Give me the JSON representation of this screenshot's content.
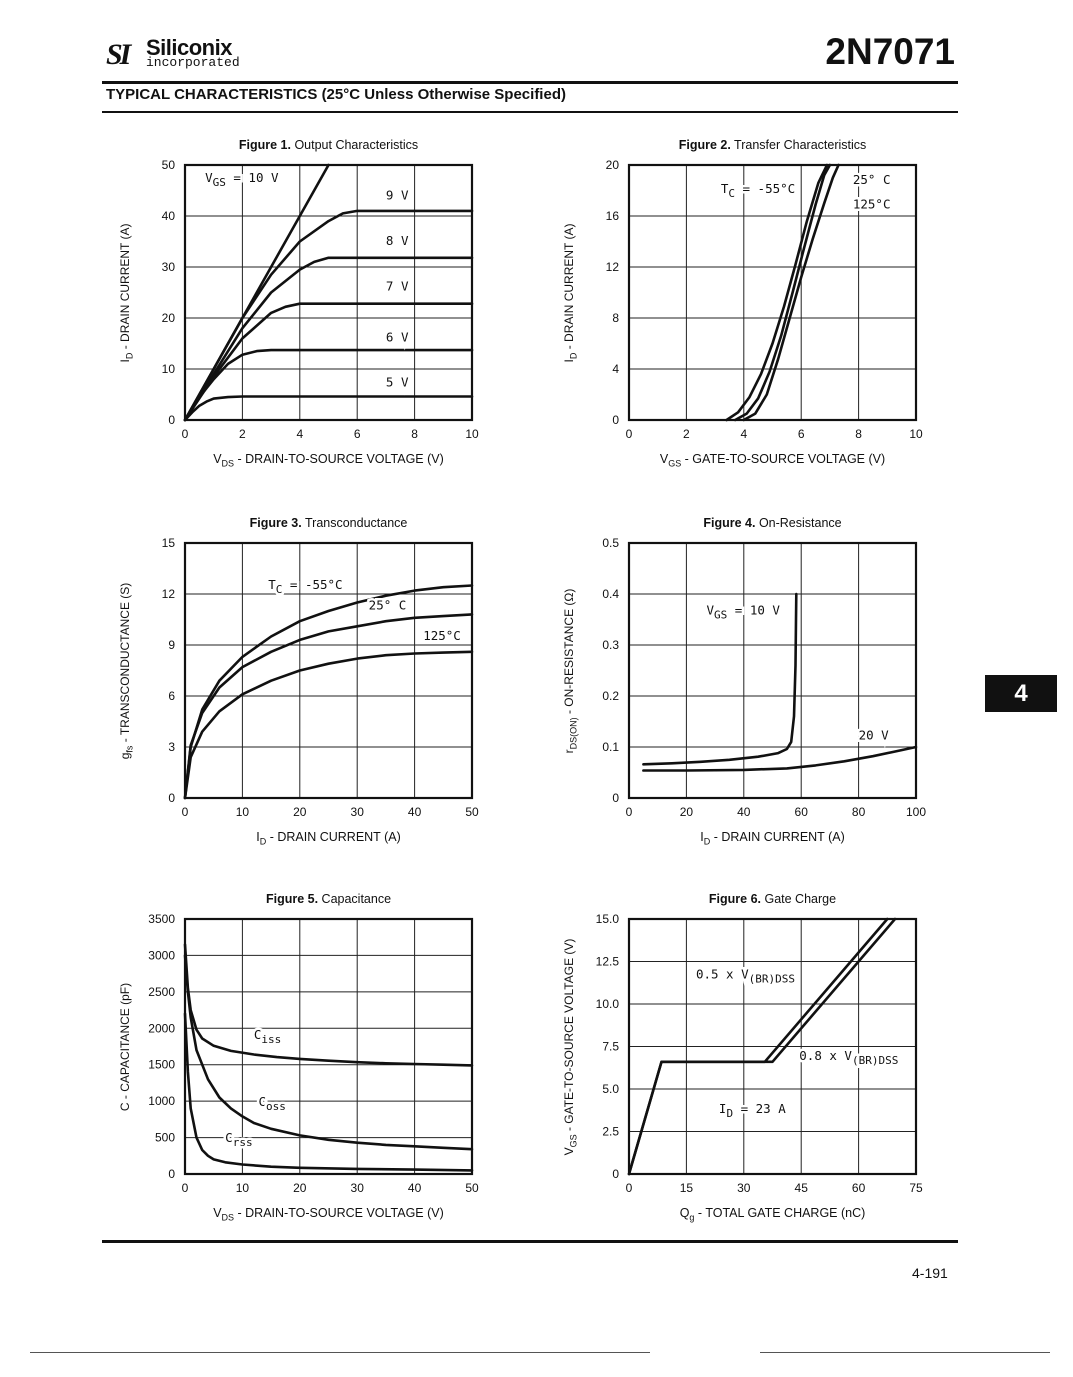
{
  "header": {
    "logo_mark": "SI",
    "logo_name": "Siliconix",
    "logo_subtitle": "incorporated",
    "part_number": "2N7071",
    "section_title": "TYPICAL CHARACTERISTICS (25°C Unless Otherwise Specified)"
  },
  "section_tab": "4",
  "footer": {
    "page_number": "4-191"
  },
  "chart_data": [
    {
      "id": "fig1",
      "type": "line",
      "figure_label": "Figure 1.",
      "figure_name": "Output Characteristics",
      "xlabel_sym": "V",
      "xlabel_sub": "DS",
      "xlabel_text": "-  DRAIN-TO-SOURCE VOLTAGE (V)",
      "ylabel_sym": "I",
      "ylabel_sub": "D",
      "ylabel_text": "-  DRAIN CURRENT (A)",
      "xlim": [
        0,
        10
      ],
      "ylim": [
        0,
        50
      ],
      "xticks": [
        "0",
        "2",
        "4",
        "6",
        "8",
        "10"
      ],
      "yticks": [
        "0",
        "10",
        "20",
        "30",
        "40",
        "50"
      ],
      "series": [
        {
          "name": "VGS = 10 V",
          "x": [
            0,
            1,
            2,
            3,
            4,
            5
          ],
          "y": [
            0,
            10,
            20,
            30,
            40,
            50
          ]
        },
        {
          "name": "9 V",
          "x": [
            0,
            1,
            2,
            3,
            4,
            5,
            5.5,
            6,
            7,
            10
          ],
          "y": [
            0,
            10,
            20,
            28.5,
            35,
            39,
            40.5,
            41,
            41,
            41
          ]
        },
        {
          "name": "8 V",
          "x": [
            0,
            1,
            2,
            3,
            4,
            4.5,
            5,
            10
          ],
          "y": [
            0,
            9,
            18,
            25,
            29.5,
            31,
            31.8,
            31.8
          ]
        },
        {
          "name": "7 V",
          "x": [
            0,
            1,
            2,
            3,
            3.5,
            4,
            10
          ],
          "y": [
            0,
            8.5,
            16,
            21,
            22.2,
            22.8,
            22.8
          ]
        },
        {
          "name": "6 V",
          "x": [
            0,
            0.5,
            1,
            1.5,
            2,
            2.5,
            3,
            10
          ],
          "y": [
            0,
            4.5,
            8,
            11,
            12.8,
            13.5,
            13.7,
            13.7
          ]
        },
        {
          "name": "5 V",
          "x": [
            0,
            0.25,
            0.5,
            0.75,
            1,
            1.5,
            2,
            10
          ],
          "y": [
            0,
            1.5,
            2.8,
            3.6,
            4.2,
            4.5,
            4.6,
            4.6
          ]
        }
      ],
      "annotations": [
        {
          "text": "V",
          "sub": "GS",
          "after": " = 10 V",
          "x": 0.7,
          "y": 46.7
        },
        {
          "text": "9 V",
          "x": 7.0,
          "y": 43.2
        },
        {
          "text": "8 V",
          "x": 7.0,
          "y": 34.3
        },
        {
          "text": "7 V",
          "x": 7.0,
          "y": 25.4
        },
        {
          "text": "6 V",
          "x": 7.0,
          "y": 15.4
        },
        {
          "text": "5 V",
          "x": 7.0,
          "y": 6.6
        }
      ]
    },
    {
      "id": "fig2",
      "type": "line",
      "figure_label": "Figure 2.",
      "figure_name": "Transfer Characteristics",
      "xlabel_sym": "V",
      "xlabel_sub": "GS",
      "xlabel_text": "-  GATE-TO-SOURCE VOLTAGE (V)",
      "ylabel_sym": "I",
      "ylabel_sub": "D",
      "ylabel_text": "-  DRAIN CURRENT (A)",
      "xlim": [
        0,
        10
      ],
      "ylim": [
        0,
        20
      ],
      "xticks": [
        "0",
        "2",
        "4",
        "6",
        "8",
        "10"
      ],
      "yticks": [
        "0",
        "4",
        "8",
        "12",
        "16",
        "20"
      ],
      "series": [
        {
          "name": "Tc = -55°C",
          "x": [
            3.4,
            3.8,
            4.2,
            4.6,
            5.0,
            5.4,
            5.8,
            6.2,
            6.6,
            6.9
          ],
          "y": [
            0,
            0.6,
            1.8,
            3.6,
            6.0,
            8.9,
            12.2,
            15.6,
            18.6,
            20
          ]
        },
        {
          "name": "25°C",
          "x": [
            3.7,
            4.1,
            4.5,
            4.9,
            5.3,
            5.7,
            6.1,
            6.5,
            6.8,
            7.0
          ],
          "y": [
            0,
            0.5,
            1.7,
            3.8,
            6.6,
            10.0,
            13.5,
            16.9,
            19.2,
            20
          ]
        },
        {
          "name": "125°C",
          "x": [
            4.0,
            4.4,
            4.8,
            5.2,
            5.6,
            6.0,
            6.4,
            6.8,
            7.1,
            7.3
          ],
          "y": [
            0,
            0.5,
            2.0,
            4.8,
            8.0,
            11.2,
            14.2,
            17.0,
            19.0,
            20
          ]
        }
      ],
      "annotations": [
        {
          "text": "T",
          "sub": "C",
          "after": " = -55°C",
          "x": 3.2,
          "y": 17.8
        },
        {
          "text": "25° C",
          "x": 7.8,
          "y": 18.5
        },
        {
          "text": "125°C",
          "x": 7.8,
          "y": 16.6
        }
      ]
    },
    {
      "id": "fig3",
      "type": "line",
      "figure_label": "Figure 3.",
      "figure_name": "Transconductance",
      "xlabel_sym": "I",
      "xlabel_sub": "D",
      "xlabel_text": "-  DRAIN CURRENT (A)",
      "ylabel_sym": "g",
      "ylabel_sub": "fs",
      "ylabel_text": "-  TRANSCONDUCTANCE (S)",
      "xlim": [
        0,
        50
      ],
      "ylim": [
        0,
        15
      ],
      "xticks": [
        "0",
        "10",
        "20",
        "30",
        "40",
        "50"
      ],
      "yticks": [
        "0",
        "3",
        "6",
        "9",
        "12",
        "15"
      ],
      "series": [
        {
          "name": "Tc = -55°C",
          "x": [
            0,
            1,
            3,
            6,
            10,
            15,
            20,
            25,
            30,
            35,
            40,
            45,
            50
          ],
          "y": [
            0,
            3,
            5.2,
            6.9,
            8.3,
            9.5,
            10.4,
            11.0,
            11.5,
            11.9,
            12.2,
            12.4,
            12.5
          ]
        },
        {
          "name": "25°C",
          "x": [
            0,
            1,
            3,
            6,
            10,
            15,
            20,
            25,
            30,
            35,
            40,
            45,
            50
          ],
          "y": [
            0,
            3.1,
            5,
            6.5,
            7.7,
            8.6,
            9.3,
            9.8,
            10.1,
            10.4,
            10.6,
            10.7,
            10.8
          ]
        },
        {
          "name": "125°C",
          "x": [
            0,
            1,
            3,
            6,
            10,
            15,
            20,
            25,
            30,
            35,
            40,
            45,
            50
          ],
          "y": [
            0,
            2.4,
            3.9,
            5.1,
            6.1,
            6.9,
            7.5,
            7.9,
            8.2,
            8.4,
            8.5,
            8.55,
            8.6
          ]
        }
      ],
      "annotations": [
        {
          "text": "T",
          "sub": "C",
          "after": " = -55°C",
          "x": 14.5,
          "y": 12.3
        },
        {
          "text": "25° C",
          "x": 32.0,
          "y": 11.1
        },
        {
          "text": "125°C",
          "x": 41.5,
          "y": 9.3
        }
      ]
    },
    {
      "id": "fig4",
      "type": "line",
      "figure_label": "Figure 4.",
      "figure_name": "On-Resistance",
      "xlabel_sym": "I",
      "xlabel_sub": "D",
      "xlabel_text": "-  DRAIN CURRENT (A)",
      "ylabel_sym": "r",
      "ylabel_sub": "DS(ON)",
      "ylabel_text": "-  ON-RESISTANCE (Ω)",
      "xlim": [
        0,
        100
      ],
      "ylim": [
        0,
        0.5
      ],
      "xticks": [
        "0",
        "20",
        "40",
        "60",
        "80",
        "100"
      ],
      "yticks": [
        "0",
        "0.1",
        "0.2",
        "0.3",
        "0.4",
        "0.5"
      ],
      "series": [
        {
          "name": "VGS = 10 V",
          "x": [
            5,
            15,
            25,
            35,
            45,
            52,
            55,
            56.5,
            57.5,
            58,
            58.2,
            58.3
          ],
          "y": [
            0.066,
            0.068,
            0.071,
            0.075,
            0.081,
            0.088,
            0.096,
            0.11,
            0.16,
            0.26,
            0.35,
            0.4
          ]
        },
        {
          "name": "20 V",
          "x": [
            5,
            20,
            40,
            55,
            65,
            75,
            85,
            95,
            100
          ],
          "y": [
            0.054,
            0.054,
            0.055,
            0.058,
            0.064,
            0.072,
            0.082,
            0.094,
            0.1
          ]
        }
      ],
      "annotations": [
        {
          "text": "V",
          "sub": "GS",
          "after": " = 10 V",
          "x": 27.0,
          "y": 0.36
        },
        {
          "text": "20 V",
          "x": 80.0,
          "y": 0.115
        }
      ]
    },
    {
      "id": "fig5",
      "type": "line",
      "figure_label": "Figure 5.",
      "figure_name": "Capacitance",
      "xlabel_sym": "V",
      "xlabel_sub": "DS",
      "xlabel_text": "-  DRAIN-TO-SOURCE VOLTAGE (V)",
      "ylabel_sym": "C",
      "ylabel_sub": "",
      "ylabel_text": "-  CAPACITANCE (pF)",
      "xlim": [
        0,
        50
      ],
      "ylim": [
        0,
        3500
      ],
      "xticks": [
        "0",
        "10",
        "20",
        "30",
        "40",
        "50"
      ],
      "yticks": [
        "0",
        "500",
        "1000",
        "1500",
        "2000",
        "2500",
        "3000",
        "3500"
      ],
      "series": [
        {
          "name": "Ciss",
          "x": [
            0,
            0.5,
            1,
            2,
            3,
            5,
            8,
            12,
            16,
            20,
            25,
            30,
            35,
            40,
            45,
            50
          ],
          "y": [
            3150,
            2550,
            2250,
            1980,
            1860,
            1760,
            1690,
            1640,
            1605,
            1580,
            1555,
            1535,
            1520,
            1510,
            1500,
            1490
          ]
        },
        {
          "name": "Coss",
          "x": [
            0,
            0.5,
            1,
            2,
            4,
            6,
            8,
            10,
            12,
            15,
            20,
            25,
            30,
            35,
            40,
            45,
            50
          ],
          "y": [
            3000,
            2500,
            2150,
            1700,
            1300,
            1050,
            900,
            790,
            700,
            620,
            530,
            470,
            430,
            400,
            380,
            360,
            340
          ]
        },
        {
          "name": "Crss",
          "x": [
            0,
            0.5,
            1,
            2,
            3,
            4,
            5,
            7,
            10,
            15,
            20,
            30,
            40,
            50
          ],
          "y": [
            2200,
            1400,
            900,
            500,
            330,
            250,
            200,
            160,
            130,
            100,
            85,
            70,
            60,
            50
          ]
        }
      ],
      "annotations": [
        {
          "text": "C",
          "sub": "iss",
          "after": "",
          "x": 12.0,
          "y": 1850
        },
        {
          "text": "C",
          "sub": "oss",
          "after": "",
          "x": 12.8,
          "y": 930
        },
        {
          "text": "C",
          "sub": "rss",
          "after": "",
          "x": 7.0,
          "y": 440
        }
      ]
    },
    {
      "id": "fig6",
      "type": "line",
      "figure_label": "Figure 6.",
      "figure_name": "Gate Charge",
      "xlabel_sym": "Q",
      "xlabel_sub": "g",
      "xlabel_text": "-  TOTAL GATE CHARGE (nC)",
      "ylabel_sym": "V",
      "ylabel_sub": "GS",
      "ylabel_text": "-  GATE-TO-SOURCE VOLTAGE (V)",
      "xlim": [
        0,
        75
      ],
      "ylim": [
        0,
        15
      ],
      "xticks": [
        "0",
        "15",
        "30",
        "45",
        "60",
        "75"
      ],
      "yticks": [
        "0",
        "2.5",
        "5.0",
        "7.5",
        "10.0",
        "12.5",
        "15.0"
      ],
      "series": [
        {
          "name": "0.5 x V(BR)DSS",
          "x": [
            0,
            8.5,
            35.5,
            67.5
          ],
          "y": [
            0,
            6.6,
            6.6,
            15
          ]
        },
        {
          "name": "0.8 x V(BR)DSS",
          "x": [
            0,
            8.5,
            37.5,
            69.5
          ],
          "y": [
            0,
            6.6,
            6.6,
            15
          ]
        }
      ],
      "annotations": [
        {
          "text": "0.5 x V",
          "sub": "(BR)DSS",
          "after": "",
          "x": 17.5,
          "y": 11.5
        },
        {
          "text": "0.8 x V",
          "sub": "(BR)DSS",
          "after": "",
          "x": 44.5,
          "y": 6.7
        },
        {
          "text": "I",
          "sub": "D",
          "after": " = 23 A",
          "x": 23.5,
          "y": 3.6
        }
      ]
    }
  ]
}
